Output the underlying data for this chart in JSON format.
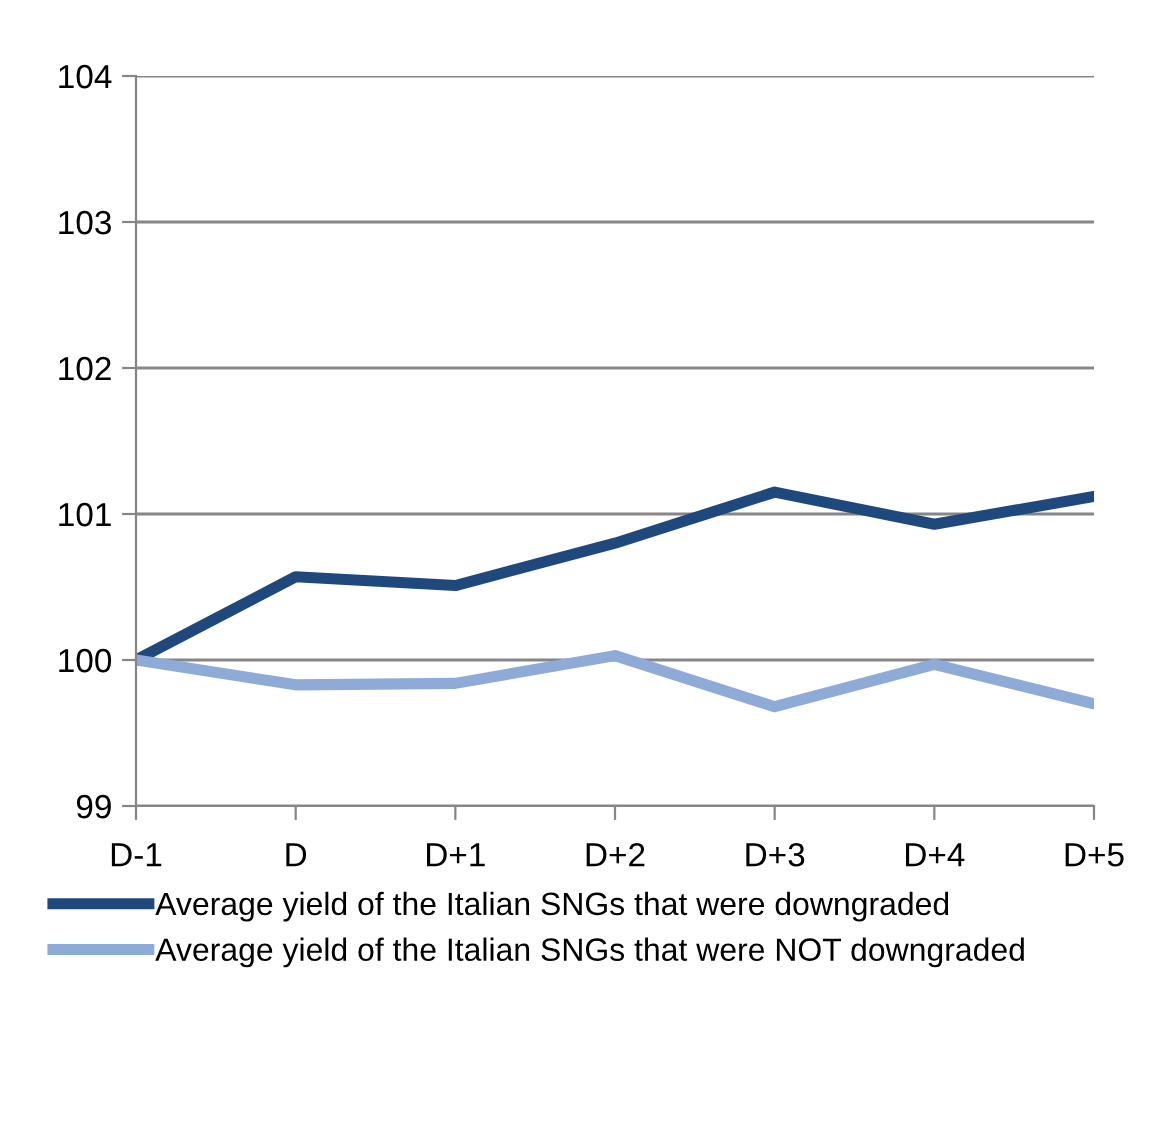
{
  "chart_data": {
    "type": "line",
    "categories": [
      "D-1",
      "D",
      "D+1",
      "D+2",
      "D+3",
      "D+4",
      "D+5"
    ],
    "series": [
      {
        "name": "Average yield of the Italian SNGs that were downgraded",
        "color": "#1f497d",
        "values": [
          100.0,
          100.57,
          100.51,
          100.8,
          101.15,
          100.93,
          101.12
        ]
      },
      {
        "name": "Average yield of the Italian SNGs that were NOT downgraded",
        "color": "#8eaad6",
        "values": [
          100.0,
          99.83,
          99.84,
          100.03,
          99.68,
          99.97,
          99.7
        ]
      }
    ],
    "ylim": [
      99,
      104
    ],
    "yticks": [
      99,
      100,
      101,
      102,
      103,
      104
    ],
    "grid": "y",
    "legend": "bottom",
    "marker": "none",
    "line_style": "solid"
  }
}
